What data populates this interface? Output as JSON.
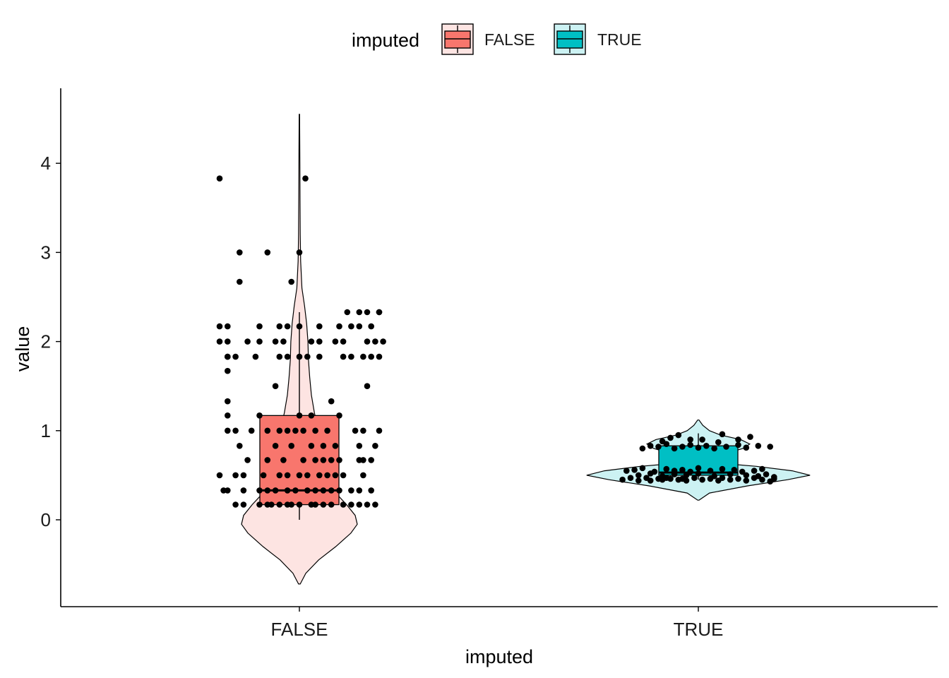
{
  "chart_data": {
    "type": "violin-box-jitter",
    "xlabel": "imputed",
    "ylabel": "value",
    "categories": [
      "FALSE",
      "TRUE"
    ],
    "ylim": [
      -0.95,
      4.9
    ],
    "yticks": [
      0,
      1,
      2,
      3,
      4
    ],
    "colors": {
      "FALSE": "#F8766D",
      "TRUE": "#00BFC4"
    },
    "violin_colors": {
      "FALSE": "#FDE4E2",
      "TRUE": "#CCF2F3"
    },
    "legend": {
      "title": "imputed",
      "position": "top",
      "labels": [
        "FALSE",
        "TRUE"
      ]
    },
    "grid": false,
    "boxes": [
      {
        "category": "FALSE",
        "q1": 0.17,
        "median": 0.33,
        "q3": 1.17,
        "whisker_low": 0.0,
        "whisker_high": 2.33
      },
      {
        "category": "TRUE",
        "q1": 0.5,
        "median": 0.53,
        "q3": 0.83,
        "whisker_low": 0.45,
        "whisker_high": 0.97
      }
    ],
    "violins": [
      {
        "category": "FALSE",
        "profile": [
          [
            -0.72,
            0.002
          ],
          [
            -0.6,
            0.015
          ],
          [
            -0.45,
            0.045
          ],
          [
            -0.3,
            0.085
          ],
          [
            -0.15,
            0.12
          ],
          [
            -0.05,
            0.135
          ],
          [
            0.05,
            0.13
          ],
          [
            0.17,
            0.11
          ],
          [
            0.3,
            0.085
          ],
          [
            0.45,
            0.07
          ],
          [
            0.6,
            0.06
          ],
          [
            0.8,
            0.052
          ],
          [
            1.0,
            0.045
          ],
          [
            1.2,
            0.035
          ],
          [
            1.4,
            0.028
          ],
          [
            1.6,
            0.024
          ],
          [
            1.8,
            0.021
          ],
          [
            2.0,
            0.02
          ],
          [
            2.2,
            0.017
          ],
          [
            2.4,
            0.012
          ],
          [
            2.6,
            0.006
          ],
          [
            2.9,
            0.003
          ],
          [
            3.2,
            0.002
          ],
          [
            3.6,
            0.0015
          ],
          [
            4.0,
            0.0012
          ],
          [
            4.55,
            0.0005
          ]
        ]
      },
      {
        "category": "TRUE",
        "profile": [
          [
            0.22,
            0.003
          ],
          [
            0.3,
            0.05
          ],
          [
            0.38,
            0.22
          ],
          [
            0.45,
            0.4
          ],
          [
            0.5,
            0.5
          ],
          [
            0.55,
            0.42
          ],
          [
            0.6,
            0.26
          ],
          [
            0.63,
            0.12
          ],
          [
            0.68,
            0.09
          ],
          [
            0.75,
            0.13
          ],
          [
            0.8,
            0.2
          ],
          [
            0.85,
            0.23
          ],
          [
            0.9,
            0.19
          ],
          [
            0.95,
            0.1
          ],
          [
            1.0,
            0.05
          ],
          [
            1.06,
            0.02
          ],
          [
            1.12,
            0.003
          ]
        ]
      }
    ],
    "points": [
      {
        "category": "FALSE",
        "offsets": [
          -0.2,
          0.015,
          -0.15,
          -0.08,
          0.0,
          -0.15,
          -0.02,
          0.15,
          0.12,
          0.17,
          0.2,
          0.2,
          -0.2,
          -0.18,
          -0.1,
          -0.05,
          -0.03,
          0.0,
          0.05,
          0.1,
          0.13,
          0.15,
          0.18,
          -0.2,
          -0.18,
          -0.13,
          -0.1,
          -0.06,
          -0.04,
          0.03,
          0.05,
          0.09,
          0.11,
          0.17,
          0.19,
          0.21,
          -0.18,
          0.13,
          -0.18,
          -0.16,
          -0.11,
          -0.05,
          -0.03,
          0.0,
          0.02,
          0.05,
          0.11,
          0.16,
          0.18,
          0.2,
          -0.18,
          -0.06,
          0.17,
          -0.18,
          0.08,
          -0.18,
          -0.1,
          0.0,
          0.03,
          0.1,
          -0.18,
          -0.16,
          -0.12,
          -0.08,
          -0.05,
          -0.03,
          -0.01,
          0.01,
          0.04,
          0.07,
          0.14,
          0.16,
          0.2,
          -0.15,
          -0.06,
          -0.02,
          0.03,
          0.06,
          0.09,
          0.15,
          0.19,
          -0.13,
          -0.08,
          -0.04,
          0.01,
          0.04,
          0.06,
          0.08,
          0.1,
          0.15,
          0.16,
          0.18,
          -0.2,
          -0.16,
          -0.14,
          -0.09,
          -0.05,
          -0.03,
          0.0,
          0.02,
          0.05,
          0.07,
          0.09,
          0.11,
          0.16,
          -0.19,
          -0.18,
          -0.14,
          -0.1,
          -0.08,
          -0.06,
          -0.03,
          -0.01,
          0.02,
          0.04,
          0.06,
          0.08,
          0.1,
          0.13,
          0.15,
          0.18,
          -0.16,
          -0.14,
          -0.1,
          -0.08,
          -0.07,
          -0.05,
          -0.03,
          -0.02,
          0.0,
          0.03,
          0.04,
          0.06,
          0.08,
          0.11,
          0.13,
          0.15,
          0.17,
          0.19
        ],
        "values": [
          3.83,
          3.83,
          3.0,
          3.0,
          3.0,
          2.67,
          2.67,
          2.33,
          2.33,
          2.33,
          2.33,
          2.33,
          2.17,
          2.17,
          2.17,
          2.17,
          2.17,
          2.17,
          2.17,
          2.17,
          2.17,
          2.17,
          2.17,
          2.0,
          2.0,
          2.0,
          2.0,
          2.0,
          2.0,
          2.0,
          2.0,
          2.0,
          2.0,
          2.0,
          2.0,
          2.0,
          1.83,
          1.83,
          1.83,
          1.83,
          1.83,
          1.83,
          1.83,
          1.83,
          1.83,
          1.83,
          1.83,
          1.83,
          1.83,
          1.83,
          1.67,
          1.5,
          1.5,
          1.33,
          1.33,
          1.17,
          1.17,
          1.17,
          1.17,
          1.17,
          1.0,
          1.0,
          1.0,
          1.0,
          1.0,
          1.0,
          1.0,
          1.0,
          1.0,
          1.0,
          1.0,
          1.0,
          1.0,
          0.83,
          0.83,
          0.83,
          0.83,
          0.83,
          0.83,
          0.83,
          0.83,
          0.67,
          0.67,
          0.67,
          0.67,
          0.67,
          0.67,
          0.67,
          0.67,
          0.67,
          0.67,
          0.67,
          0.5,
          0.5,
          0.5,
          0.5,
          0.5,
          0.5,
          0.5,
          0.5,
          0.5,
          0.5,
          0.5,
          0.5,
          0.5,
          0.33,
          0.33,
          0.33,
          0.33,
          0.33,
          0.33,
          0.33,
          0.33,
          0.33,
          0.33,
          0.33,
          0.33,
          0.33,
          0.33,
          0.33,
          0.33,
          0.17,
          0.17,
          0.17,
          0.17,
          0.17,
          0.17,
          0.17,
          0.17,
          0.17,
          0.17,
          0.17,
          0.17,
          0.17,
          0.17,
          0.17,
          0.17,
          0.17,
          0.17
        ]
      },
      {
        "category": "TRUE",
        "offsets": [
          -0.19,
          -0.17,
          -0.15,
          -0.13,
          -0.12,
          -0.1,
          -0.09,
          -0.08,
          -0.07,
          -0.05,
          -0.04,
          -0.03,
          -0.01,
          0.01,
          0.03,
          0.05,
          0.06,
          0.08,
          0.1,
          0.12,
          0.14,
          0.16,
          0.18,
          0.19,
          -0.15,
          -0.12,
          -0.09,
          -0.06,
          -0.03,
          0.0,
          0.04,
          0.08,
          0.12,
          0.15,
          0.17,
          0.19,
          -0.18,
          -0.16,
          -0.14,
          -0.11,
          -0.08,
          -0.06,
          -0.04,
          -0.02,
          0.0,
          0.03,
          0.06,
          0.09,
          0.11,
          0.14,
          0.16,
          -0.14,
          -0.12,
          -0.1,
          -0.08,
          -0.06,
          -0.04,
          -0.02,
          0.0,
          0.02,
          0.04,
          0.07,
          0.1,
          0.12,
          0.15,
          0.18,
          -0.09,
          -0.02,
          0.05,
          0.1,
          0.13,
          -0.07,
          -0.05,
          0.01,
          0.06
        ],
        "values": [
          0.45,
          0.47,
          0.44,
          0.47,
          0.44,
          0.46,
          0.45,
          0.47,
          0.46,
          0.45,
          0.46,
          0.44,
          0.47,
          0.45,
          0.46,
          0.44,
          0.47,
          0.45,
          0.46,
          0.44,
          0.47,
          0.45,
          0.43,
          0.46,
          0.5,
          0.52,
          0.49,
          0.51,
          0.5,
          0.52,
          0.49,
          0.51,
          0.5,
          0.49,
          0.51,
          0.48,
          0.55,
          0.56,
          0.58,
          0.54,
          0.57,
          0.55,
          0.56,
          0.54,
          0.58,
          0.55,
          0.57,
          0.56,
          0.54,
          0.55,
          0.57,
          0.8,
          0.83,
          0.82,
          0.85,
          0.8,
          0.82,
          0.84,
          0.81,
          0.83,
          0.8,
          0.82,
          0.84,
          0.81,
          0.83,
          0.82,
          0.88,
          0.9,
          0.87,
          0.9,
          0.93,
          0.92,
          0.95,
          0.9,
          0.96
        ]
      }
    ]
  }
}
